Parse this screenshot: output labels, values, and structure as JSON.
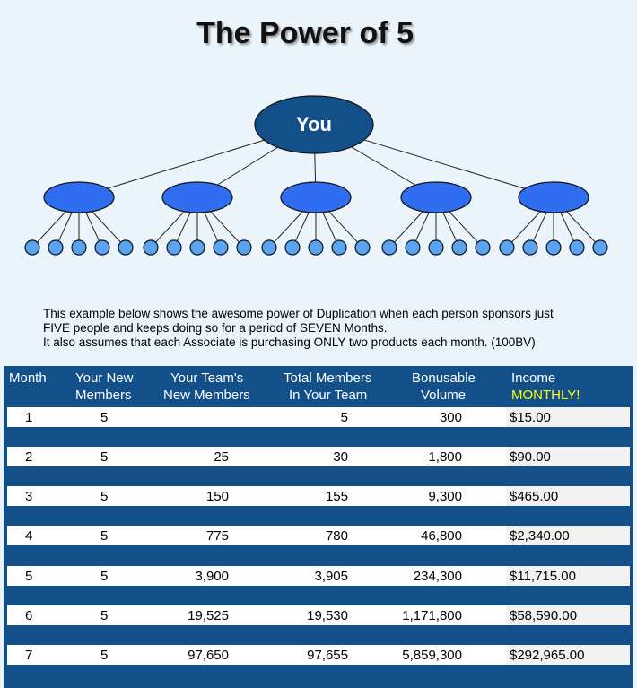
{
  "title": "The Power of 5",
  "tree": {
    "root_label": "You"
  },
  "description": [
    "This example below shows the awesome power of Duplication when each person sponsors just",
    "FIVE people and keeps doing so for a period of SEVEN Months.",
    "It also assumes that each Associate is purchasing ONLY two products each month. (100BV)"
  ],
  "table": {
    "headers": {
      "month": "Month",
      "new_1": "Your New",
      "new_2": "Members",
      "team_1": "Your Team's",
      "team_2": "New Members",
      "total_1": "Total Members",
      "total_2": "In Your Team",
      "vol_1": "Bonusable",
      "vol_2": "Volume",
      "inc_1": "Income",
      "inc_2": "MONTHLY!"
    },
    "rows": [
      {
        "month": "1",
        "new": "5",
        "team": "",
        "total": "5",
        "volume": "300",
        "income": "$15.00"
      },
      {
        "month": "2",
        "new": "5",
        "team": "25",
        "total": "30",
        "volume": "1,800",
        "income": "$90.00"
      },
      {
        "month": "3",
        "new": "5",
        "team": "150",
        "total": "155",
        "volume": "9,300",
        "income": "$465.00"
      },
      {
        "month": "4",
        "new": "5",
        "team": "775",
        "total": "780",
        "volume": "46,800",
        "income": "$2,340.00"
      },
      {
        "month": "5",
        "new": "5",
        "team": "3,900",
        "total": "3,905",
        "volume": "234,300",
        "income": "$11,715.00"
      },
      {
        "month": "6",
        "new": "5",
        "team": "19,525",
        "total": "19,530",
        "volume": "1,171,800",
        "income": "$58,590.00"
      },
      {
        "month": "7",
        "new": "5",
        "team": "97,650",
        "total": "97,655",
        "volume": "5,859,300",
        "income": "$292,965.00"
      }
    ]
  },
  "colors": {
    "table_bg": "#134f88",
    "root_node": "#134f88",
    "level1_node": "#2f6ef0",
    "level2_node": "#5aa2f2",
    "highlight": "#ffff00"
  }
}
